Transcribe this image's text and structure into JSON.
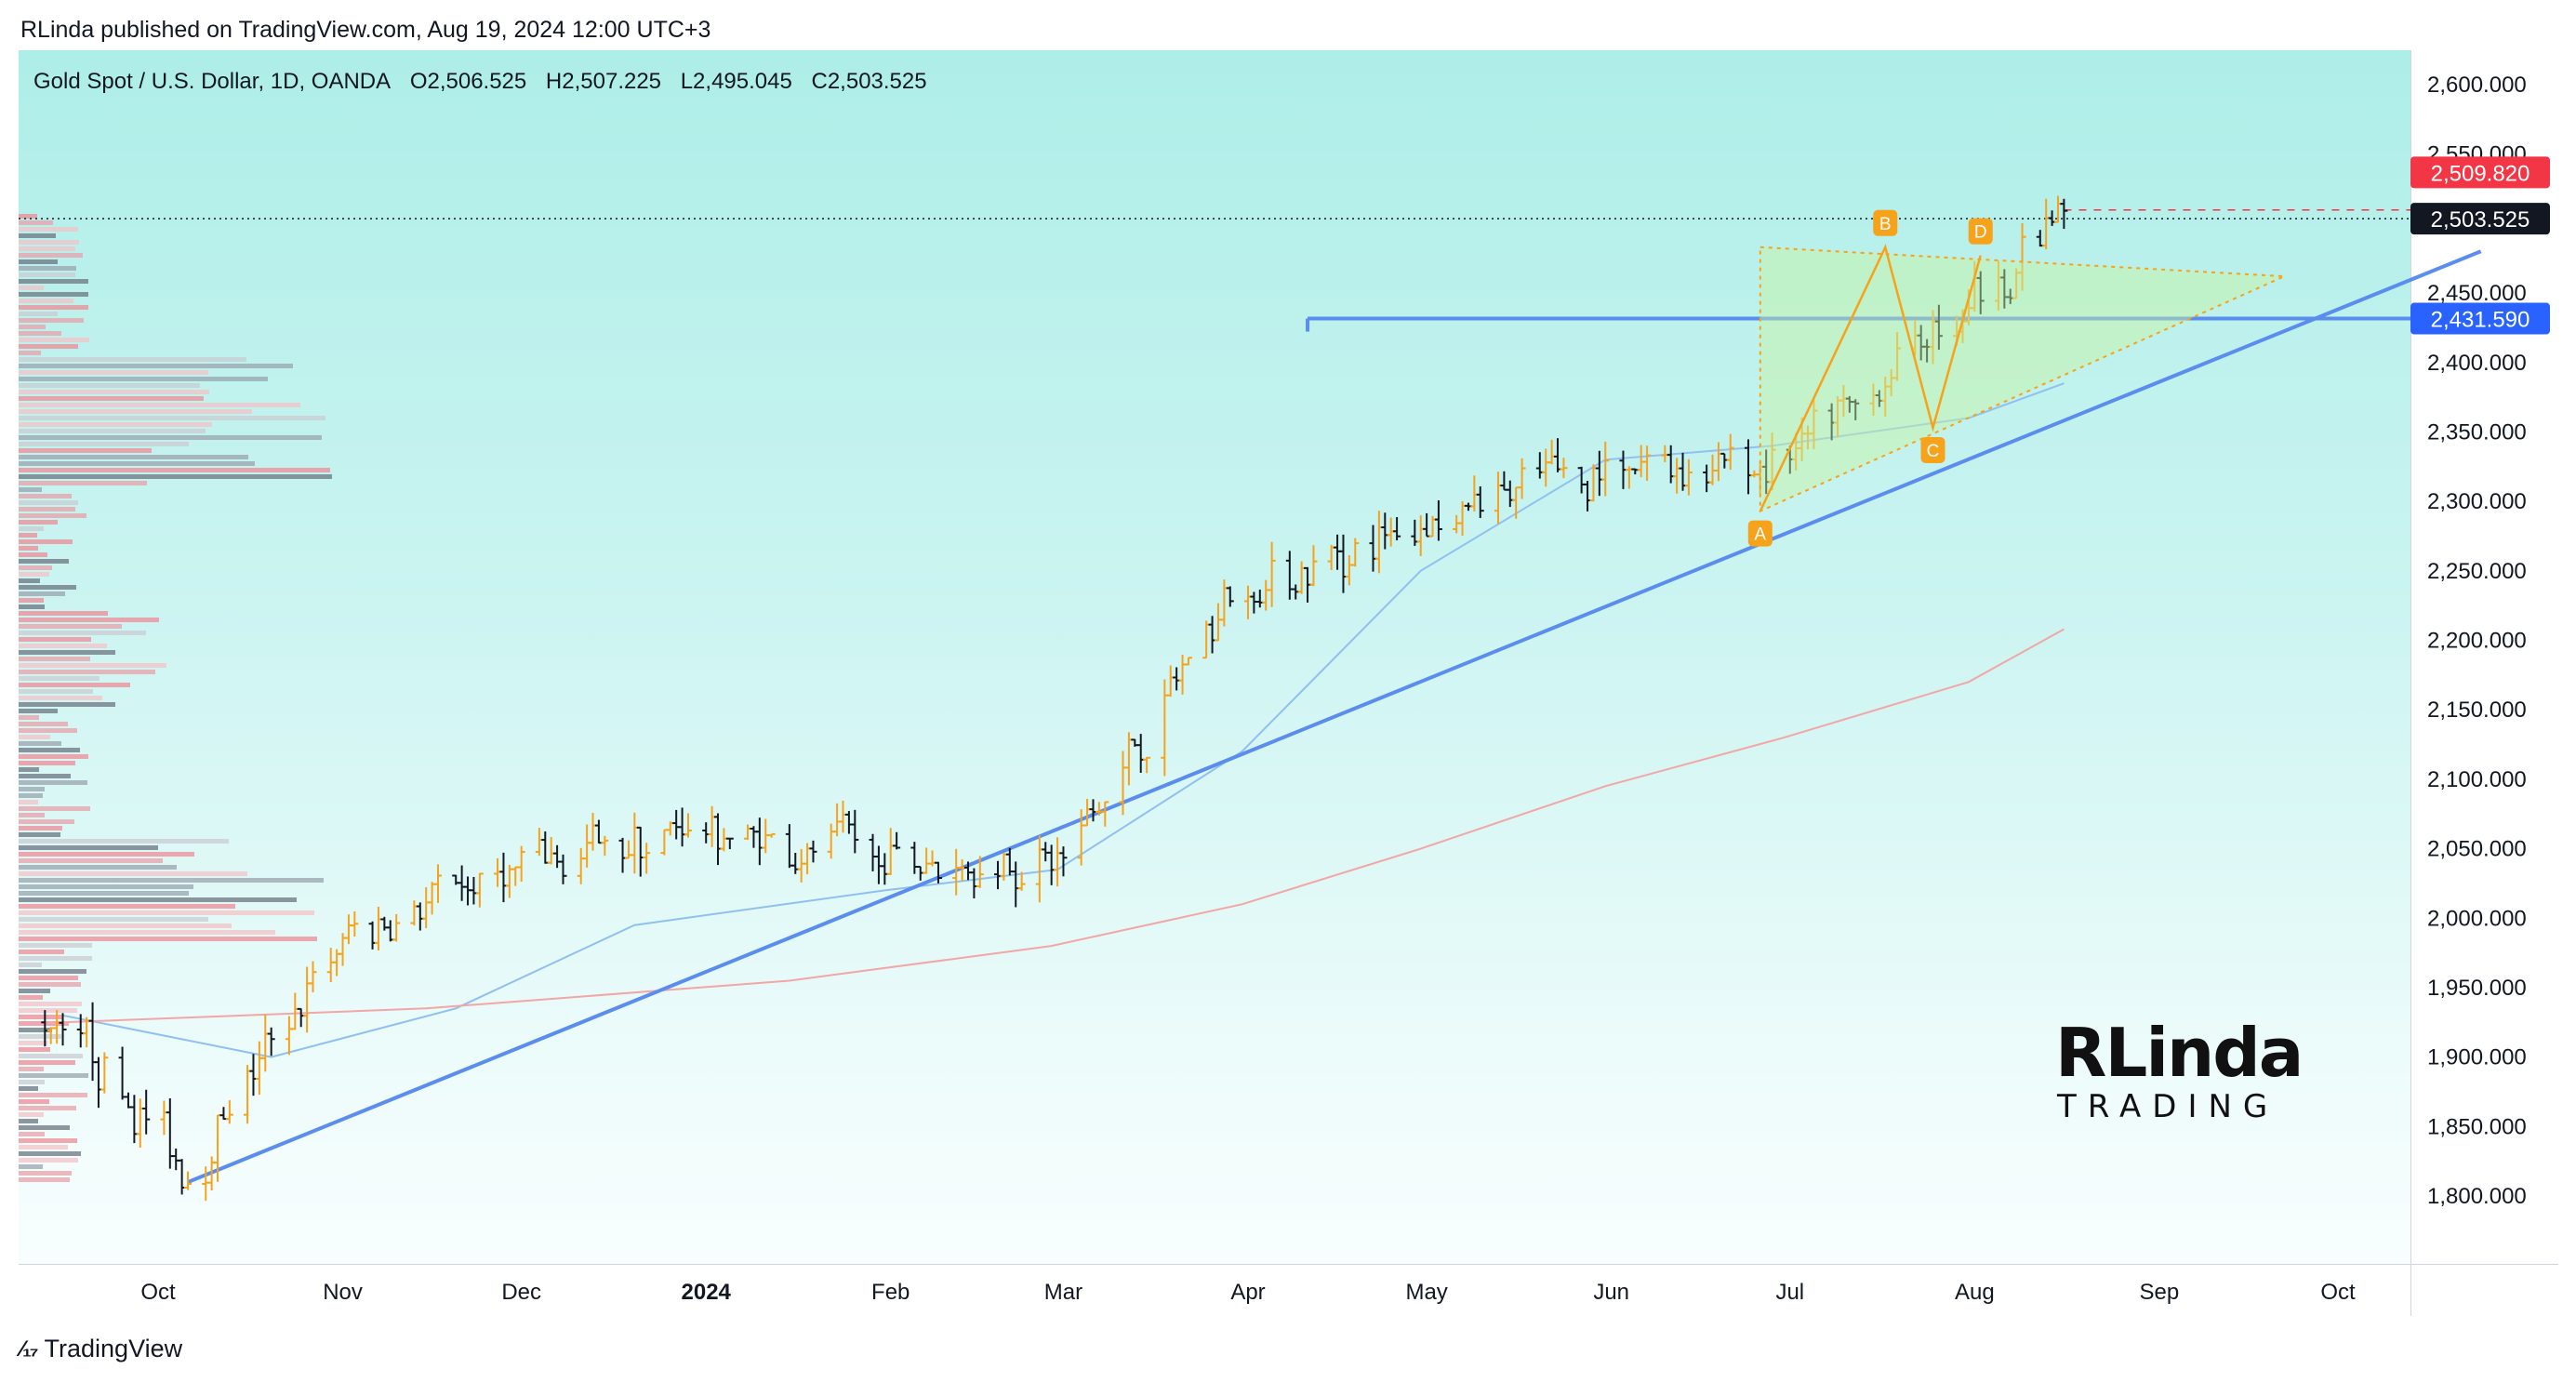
{
  "header": {
    "text": "RLinda published on TradingView.com, Aug 19, 2024 12:00 UTC+3"
  },
  "legend": {
    "symbol": "Gold Spot / U.S. Dollar, 1D, OANDA",
    "open": "O2,506.525",
    "high": "H2,507.225",
    "low": "L2,495.045",
    "close": "C2,503.525"
  },
  "price_badges": {
    "alert": {
      "label": "2,509.820",
      "color": "#f23645"
    },
    "last": {
      "label": "2,503.525",
      "color": "#131722"
    },
    "level": {
      "label": "2,431.590",
      "color": "#2962ff"
    }
  },
  "pattern_points": [
    "A",
    "B",
    "C",
    "D"
  ],
  "brand": {
    "big": "RLinda",
    "small": "TRADING"
  },
  "footer": {
    "brand": "TradingView"
  },
  "colors": {
    "up": "#f7a21b",
    "down": "#131722",
    "trendline": "#5b8def",
    "level": "#5b8def",
    "ma_fast": "#90c0f0",
    "ma_slow": "#f2a6a6",
    "pattern": "#f7a21b"
  },
  "chart_data": {
    "type": "candlestick",
    "title": "Gold Spot / U.S. Dollar, 1D, OANDA",
    "ylim": [
      1750,
      2625
    ],
    "y_ticks": [
      "2,600.000",
      "2,550.000",
      "2,500.000",
      "2,450.000",
      "2,400.000",
      "2,350.000",
      "2,300.000",
      "2,250.000",
      "2,200.000",
      "2,150.000",
      "2,100.000",
      "2,050.000",
      "2,000.000",
      "1,950.000",
      "1,900.000",
      "1,850.000",
      "1,800.000"
    ],
    "x_ticks": [
      "Oct",
      "Nov",
      "Dec",
      "2024",
      "Feb",
      "Mar",
      "Apr",
      "May",
      "Jun",
      "Jul",
      "Aug",
      "Sep",
      "Oct"
    ],
    "x_range": [
      "2023-09-10",
      "2024-10-25"
    ],
    "monthly_closes": [
      {
        "date": "2023-09-15",
        "close": 1925
      },
      {
        "date": "2023-10-05",
        "close": 1820
      },
      {
        "date": "2023-10-31",
        "close": 1985
      },
      {
        "date": "2023-11-30",
        "close": 2036
      },
      {
        "date": "2023-12-29",
        "close": 2063
      },
      {
        "date": "2024-01-31",
        "close": 2040
      },
      {
        "date": "2024-02-29",
        "close": 2045
      },
      {
        "date": "2024-03-28",
        "close": 2230
      },
      {
        "date": "2024-04-30",
        "close": 2285
      },
      {
        "date": "2024-05-31",
        "close": 2327
      },
      {
        "date": "2024-06-28",
        "close": 2326
      },
      {
        "date": "2024-07-31",
        "close": 2447
      },
      {
        "date": "2024-08-16",
        "close": 2507
      }
    ],
    "horizontal_level": 2431.59,
    "last_price": 2503.525,
    "alert_price": 2509.82,
    "trendline": {
      "from": {
        "date": "2023-10-06",
        "price": 1810
      },
      "to": {
        "date": "2024-10-25",
        "price": 2480
      }
    },
    "triangle": [
      {
        "date": "2024-06-26",
        "price": 2483
      },
      {
        "date": "2024-09-22",
        "price": 2462
      },
      {
        "date": "2024-06-26",
        "price": 2293
      }
    ],
    "abcd": [
      {
        "label": "A",
        "date": "2024-06-26",
        "price": 2293
      },
      {
        "label": "B",
        "date": "2024-07-17",
        "price": 2483
      },
      {
        "label": "C",
        "date": "2024-07-25",
        "price": 2353
      },
      {
        "label": "D",
        "date": "2024-08-02",
        "price": 2477
      }
    ],
    "ma_fast": [
      {
        "date": "2023-09-15",
        "price": 1930
      },
      {
        "date": "2023-10-20",
        "price": 1900
      },
      {
        "date": "2023-11-20",
        "price": 1935
      },
      {
        "date": "2023-12-20",
        "price": 1995
      },
      {
        "date": "2024-01-31",
        "price": 2020
      },
      {
        "date": "2024-02-29",
        "price": 2035
      },
      {
        "date": "2024-03-31",
        "price": 2120
      },
      {
        "date": "2024-04-30",
        "price": 2250
      },
      {
        "date": "2024-05-31",
        "price": 2330
      },
      {
        "date": "2024-06-28",
        "price": 2340
      },
      {
        "date": "2024-07-31",
        "price": 2360
      },
      {
        "date": "2024-08-16",
        "price": 2385
      }
    ],
    "ma_slow": [
      {
        "date": "2023-09-15",
        "price": 1925
      },
      {
        "date": "2023-11-15",
        "price": 1935
      },
      {
        "date": "2024-01-15",
        "price": 1955
      },
      {
        "date": "2024-02-28",
        "price": 1980
      },
      {
        "date": "2024-03-31",
        "price": 2010
      },
      {
        "date": "2024-04-30",
        "price": 2050
      },
      {
        "date": "2024-05-31",
        "price": 2095
      },
      {
        "date": "2024-06-30",
        "price": 2130
      },
      {
        "date": "2024-07-31",
        "price": 2170
      },
      {
        "date": "2024-08-16",
        "price": 2208
      }
    ]
  }
}
